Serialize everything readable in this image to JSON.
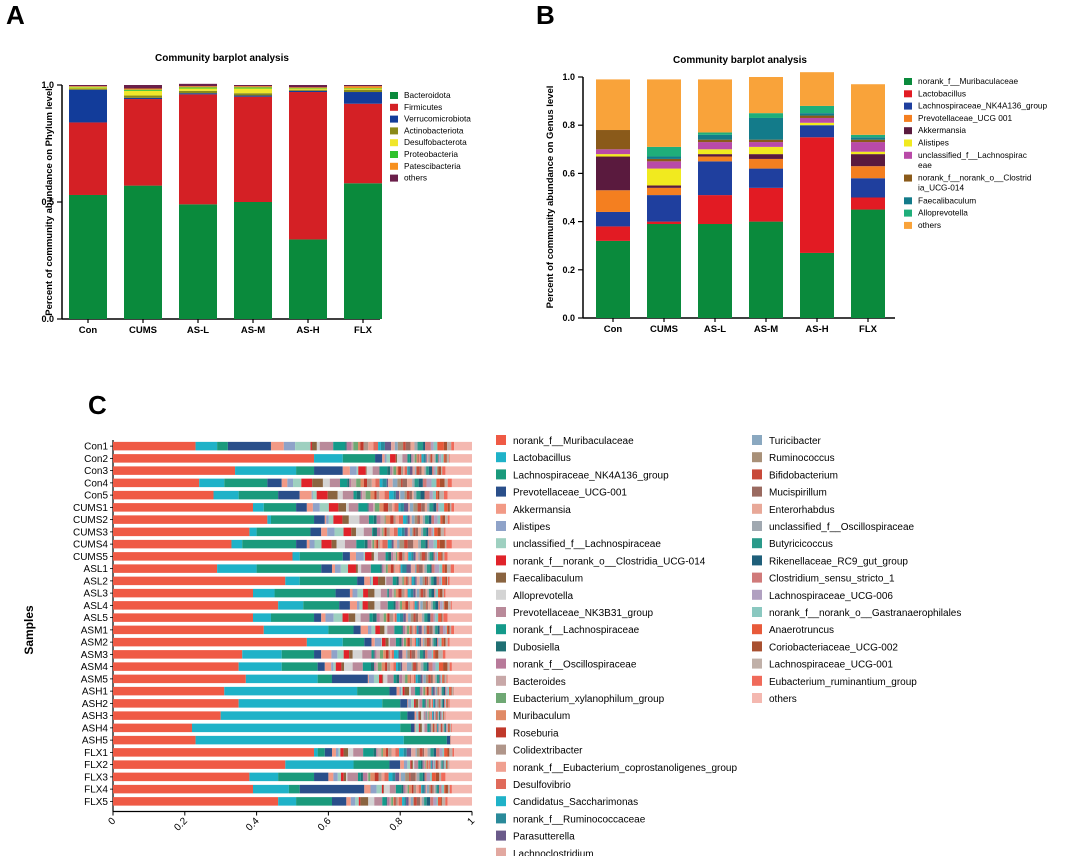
{
  "panel_labels": [
    "A",
    "B",
    "C"
  ],
  "colors": {
    "bacteroidota": "#0a8a3c",
    "firmicutes": "#d42025",
    "verrucomicrobiota": "#123c9a",
    "actinobacteriota": "#8a8a1a",
    "desulfobacterota": "#f0e62a",
    "proteobacteria": "#2fc22c",
    "patescibacteria": "#f7901e",
    "others_dark": "#6a1f4a",
    "genus_muribaculaceae": "#0a8a3c",
    "genus_lactobacillus": "#e21b23",
    "genus_lachno_nk4a136": "#1f3f9e",
    "genus_prevotellaceae_ucg001": "#f47f20",
    "genus_akkermansia": "#5a1a3e",
    "genus_alistipes": "#f1ea1f",
    "genus_unclassified_lachno": "#b94aa8",
    "genus_clostridia_ucg014": "#8a5a1a",
    "genus_faecalibaculum": "#137b8a",
    "genus_alloprevotella": "#1fae7a",
    "genus_others": "#f9a33a"
  },
  "chart_data": [
    {
      "type": "bar",
      "stacked": true,
      "panel": "A",
      "title": "Community barplot analysis",
      "xlabel": "",
      "ylabel": "Percent of community abundance on Phylum level",
      "ylim": [
        0,
        1
      ],
      "yticks": [
        "0.0",
        "0.5",
        "1.0"
      ],
      "categories": [
        "Con",
        "CUMS",
        "AS-L",
        "AS-M",
        "AS-H",
        "FLX"
      ],
      "series": [
        {
          "name": "Bacteroidota",
          "color_key": "bacteroidota",
          "values": [
            0.53,
            0.57,
            0.49,
            0.5,
            0.34,
            0.58
          ]
        },
        {
          "name": "Firmicutes",
          "color_key": "firmicutes",
          "values": [
            0.31,
            0.37,
            0.47,
            0.45,
            0.63,
            0.34
          ]
        },
        {
          "name": "Verrucomicrobiota",
          "color_key": "verrucomicrobiota",
          "values": [
            0.14,
            0.005,
            0.005,
            0.005,
            0.005,
            0.05
          ]
        },
        {
          "name": "Actinobacteriota",
          "color_key": "actinobacteriota",
          "values": [
            0.005,
            0.01,
            0.01,
            0.01,
            0.005,
            0.01
          ]
        },
        {
          "name": "Desulfobacterota",
          "color_key": "desulfobacterota",
          "values": [
            0.005,
            0.02,
            0.01,
            0.02,
            0.005,
            0.005
          ]
        },
        {
          "name": "Proteobacteria",
          "color_key": "proteobacteria",
          "values": [
            0.002,
            0.005,
            0.005,
            0.005,
            0.002,
            0.002
          ]
        },
        {
          "name": "Patescibacteria",
          "color_key": "patescibacteria",
          "values": [
            0.003,
            0.005,
            0.005,
            0.005,
            0.003,
            0.008
          ]
        },
        {
          "name": "others",
          "color_key": "others_dark",
          "values": [
            0.005,
            0.015,
            0.01,
            0.005,
            0.01,
            0.005
          ]
        }
      ]
    },
    {
      "type": "bar",
      "stacked": true,
      "panel": "B",
      "title": "Community barplot analysis",
      "xlabel": "",
      "ylabel": "Percent of community abundance on Genus level",
      "ylim": [
        0,
        1
      ],
      "yticks": [
        "0.0",
        "0.2",
        "0.4",
        "0.6",
        "0.8",
        "1.0"
      ],
      "categories": [
        "Con",
        "CUMS",
        "AS-L",
        "AS-M",
        "AS-H",
        "FLX"
      ],
      "series": [
        {
          "name": "norank_f__Muribaculaceae",
          "color_key": "genus_muribaculaceae",
          "values": [
            0.32,
            0.39,
            0.39,
            0.4,
            0.27,
            0.45
          ]
        },
        {
          "name": "Lactobacillus",
          "color_key": "genus_lactobacillus",
          "values": [
            0.06,
            0.01,
            0.12,
            0.14,
            0.48,
            0.05
          ]
        },
        {
          "name": "Lachnospiraceae_NK4A136_group",
          "color_key": "genus_lachno_nk4a136",
          "values": [
            0.06,
            0.11,
            0.14,
            0.08,
            0.05,
            0.08
          ]
        },
        {
          "name": "Prevotellaceae_UCG 001",
          "color_key": "genus_prevotellaceae_ucg001",
          "values": [
            0.09,
            0.03,
            0.02,
            0.04,
            0.0,
            0.05
          ]
        },
        {
          "name": "Akkermansia",
          "color_key": "genus_akkermansia",
          "values": [
            0.14,
            0.01,
            0.01,
            0.02,
            0.0,
            0.05
          ]
        },
        {
          "name": "Alistipes",
          "color_key": "genus_alistipes",
          "values": [
            0.01,
            0.07,
            0.02,
            0.03,
            0.01,
            0.01
          ]
        },
        {
          "name": "unclassified_f__Lachnospiraceae",
          "color_key": "genus_unclassified_lachno",
          "values": [
            0.02,
            0.03,
            0.03,
            0.02,
            0.02,
            0.04
          ]
        },
        {
          "name": "norank_f__norank_o__Clostridia_UCG-014",
          "color_key": "genus_clostridia_ucg014",
          "values": [
            0.08,
            0.01,
            0.01,
            0.01,
            0.01,
            0.01
          ]
        },
        {
          "name": "Faecalibaculum",
          "color_key": "genus_faecalibaculum",
          "values": [
            0.0,
            0.01,
            0.02,
            0.09,
            0.01,
            0.01
          ]
        },
        {
          "name": "Alloprevotella",
          "color_key": "genus_alloprevotella",
          "values": [
            0.0,
            0.04,
            0.01,
            0.02,
            0.03,
            0.01
          ]
        },
        {
          "name": "others",
          "color_key": "genus_others",
          "values": [
            0.21,
            0.28,
            0.22,
            0.15,
            0.14,
            0.21
          ]
        }
      ]
    },
    {
      "type": "bar",
      "orientation": "horizontal",
      "stacked": true,
      "panel": "C",
      "title": "",
      "xlabel": "",
      "ylabel": "Samples",
      "xlim": [
        0,
        1
      ],
      "xticks": [
        "0",
        "0.2",
        "0.4",
        "0.6",
        "0.8",
        "1"
      ],
      "categories": [
        "Con1",
        "Con2",
        "Con3",
        "Con4",
        "Con5",
        "CUMS1",
        "CUMS2",
        "CUMS3",
        "CUMS4",
        "CUMS5",
        "ASL1",
        "ASL2",
        "ASL3",
        "ASL4",
        "ASL5",
        "ASM1",
        "ASM2",
        "ASM3",
        "ASM4",
        "ASM5",
        "ASH1",
        "ASH2",
        "ASH3",
        "ASH4",
        "ASH5",
        "FLX1",
        "FLX2",
        "FLX3",
        "FLX4",
        "FLX5"
      ],
      "lead_values": {
        "muribaculaceae": [
          0.23,
          0.56,
          0.34,
          0.24,
          0.28,
          0.39,
          0.43,
          0.38,
          0.33,
          0.5,
          0.29,
          0.48,
          0.39,
          0.46,
          0.39,
          0.42,
          0.54,
          0.36,
          0.35,
          0.37,
          0.31,
          0.35,
          0.3,
          0.22,
          0.23,
          0.56,
          0.48,
          0.38,
          0.39,
          0.46
        ],
        "lactobacillus": [
          0.06,
          0.08,
          0.17,
          0.07,
          0.07,
          0.03,
          0.01,
          0.02,
          0.03,
          0.02,
          0.11,
          0.04,
          0.06,
          0.07,
          0.05,
          0.18,
          0.1,
          0.11,
          0.12,
          0.2,
          0.37,
          0.4,
          0.5,
          0.58,
          0.58,
          0.01,
          0.19,
          0.08,
          0.1,
          0.05
        ],
        "lachno_nk4a136": [
          0.03,
          0.09,
          0.05,
          0.12,
          0.11,
          0.09,
          0.12,
          0.15,
          0.15,
          0.12,
          0.18,
          0.16,
          0.17,
          0.1,
          0.12,
          0.07,
          0.06,
          0.09,
          0.1,
          0.04,
          0.09,
          0.05,
          0.02,
          0.03,
          0.12,
          0.02,
          0.1,
          0.1,
          0.03,
          0.1
        ],
        "prevotellaceae": [
          0.12,
          0.02,
          0.08,
          0.04,
          0.06,
          0.03,
          0.03,
          0.03,
          0.03,
          0.02,
          0.03,
          0.02,
          0.04,
          0.03,
          0.02,
          0.02,
          0.02,
          0.02,
          0.02,
          0.1,
          0.02,
          0.02,
          0.02,
          0.01,
          0.01,
          0.02,
          0.03,
          0.04,
          0.18,
          0.04
        ]
      },
      "legend": [
        "norank_f__Muribaculaceae",
        "Lactobacillus",
        "Lachnospiraceae_NK4A136_group",
        "Prevotellaceae_UCG-001",
        "Akkermansia",
        "Alistipes",
        "unclassified_f__Lachnospiraceae",
        "norank_f__norank_o__Clostridia_UCG-014",
        "Faecalibaculum",
        "Alloprevotella",
        "Prevotellaceae_NK3B31_group",
        "norank_f__Lachnospiraceae",
        "Dubosiella",
        "norank_f__Oscillospiraceae",
        "Bacteroides",
        "Eubacterium_xylanophilum_group",
        "Muribaculum",
        "Roseburia",
        "Colidextribacter",
        "norank_f__Eubacterium_coprostanoligenes_group",
        "Desulfovibrio",
        "Candidatus_Saccharimonas",
        "norank_f__Ruminococcaceae",
        "Parasutterella",
        "Lachnoclostridium",
        "Turicibacter",
        "Ruminococcus",
        "Bifidobacterium",
        "Mucispirillum",
        "Enterorhabdus",
        "unclassified_f__Oscillospiraceae",
        "Butyricicoccus",
        "Rikenellaceae_RC9_gut_group",
        "Clostridium_sensu_stricto_1",
        "Lachnospiraceae_UCG-006",
        "norank_f__norank_o__Gastranaerophilales",
        "Anaerotruncus",
        "Coriobacteriaceae_UCG-002",
        "Lachnospiraceae_UCG-001",
        "Eubacterium_ruminantium_group",
        "others"
      ],
      "legend_colors": [
        "#ef5a45",
        "#1fb2c8",
        "#1a9a7c",
        "#2a4f8a",
        "#f29a86",
        "#8fa3c9",
        "#9ed0c0",
        "#e0232a",
        "#8a6440",
        "#d4d4d4",
        "#b98a9a",
        "#149a8a",
        "#1f6f73",
        "#b87a9a",
        "#c8a8a8",
        "#6fa874",
        "#e08a66",
        "#c0392b",
        "#b0968a",
        "#f0a090",
        "#e06a5a",
        "#1fb2c8",
        "#2a8a9a",
        "#6a5a8a",
        "#e2a8a0",
        "#8aa8c0",
        "#a89078",
        "#c84a3a",
        "#9a6a60",
        "#e8a898",
        "#a0a8b0",
        "#2a9a8a",
        "#1f5f7a",
        "#d07a7a",
        "#b0a0c0",
        "#8ac8c0",
        "#e85a3a",
        "#a85030",
        "#c0b0a8",
        "#f06a5a",
        "#f4b8b0"
      ]
    }
  ]
}
